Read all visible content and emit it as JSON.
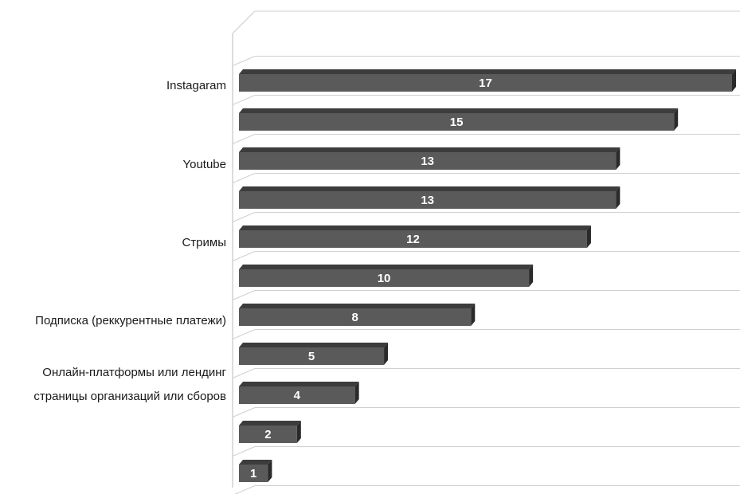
{
  "chart_data": {
    "type": "bar",
    "orientation": "horizontal",
    "style": "3d",
    "categories": [
      "Instagaram",
      "",
      "Youtube",
      "",
      "Стримы",
      "",
      "Подписка (реккурентные платежи)",
      "",
      "Онлайн-платформы или лендинг страницы организаций или сборов",
      "",
      ""
    ],
    "values": [
      17,
      15,
      13,
      13,
      12,
      10,
      8,
      5,
      4,
      2,
      1
    ],
    "data_labels": [
      "17",
      "15",
      "13",
      "13",
      "12",
      "10",
      "8",
      "5",
      "4",
      "2",
      "1"
    ],
    "title": "",
    "xlabel": "",
    "ylabel": "",
    "xlim": [
      0,
      17
    ],
    "grid": true,
    "legend": "none",
    "colors": {
      "bar_front": "#5a5a5a",
      "bar_top": "#3c3c3c",
      "bar_side": "#2a2a2a",
      "grid": "#d0d0d0",
      "label": "#ffffff"
    }
  },
  "labels": {
    "instagram": "Instagaram",
    "youtube": "Youtube",
    "streams": "Стримы",
    "subscription": "Подписка (реккурентные платежи)",
    "platforms_line1": "Онлайн-платформы или лендинг",
    "platforms_line2": "страницы организаций или сборов"
  }
}
